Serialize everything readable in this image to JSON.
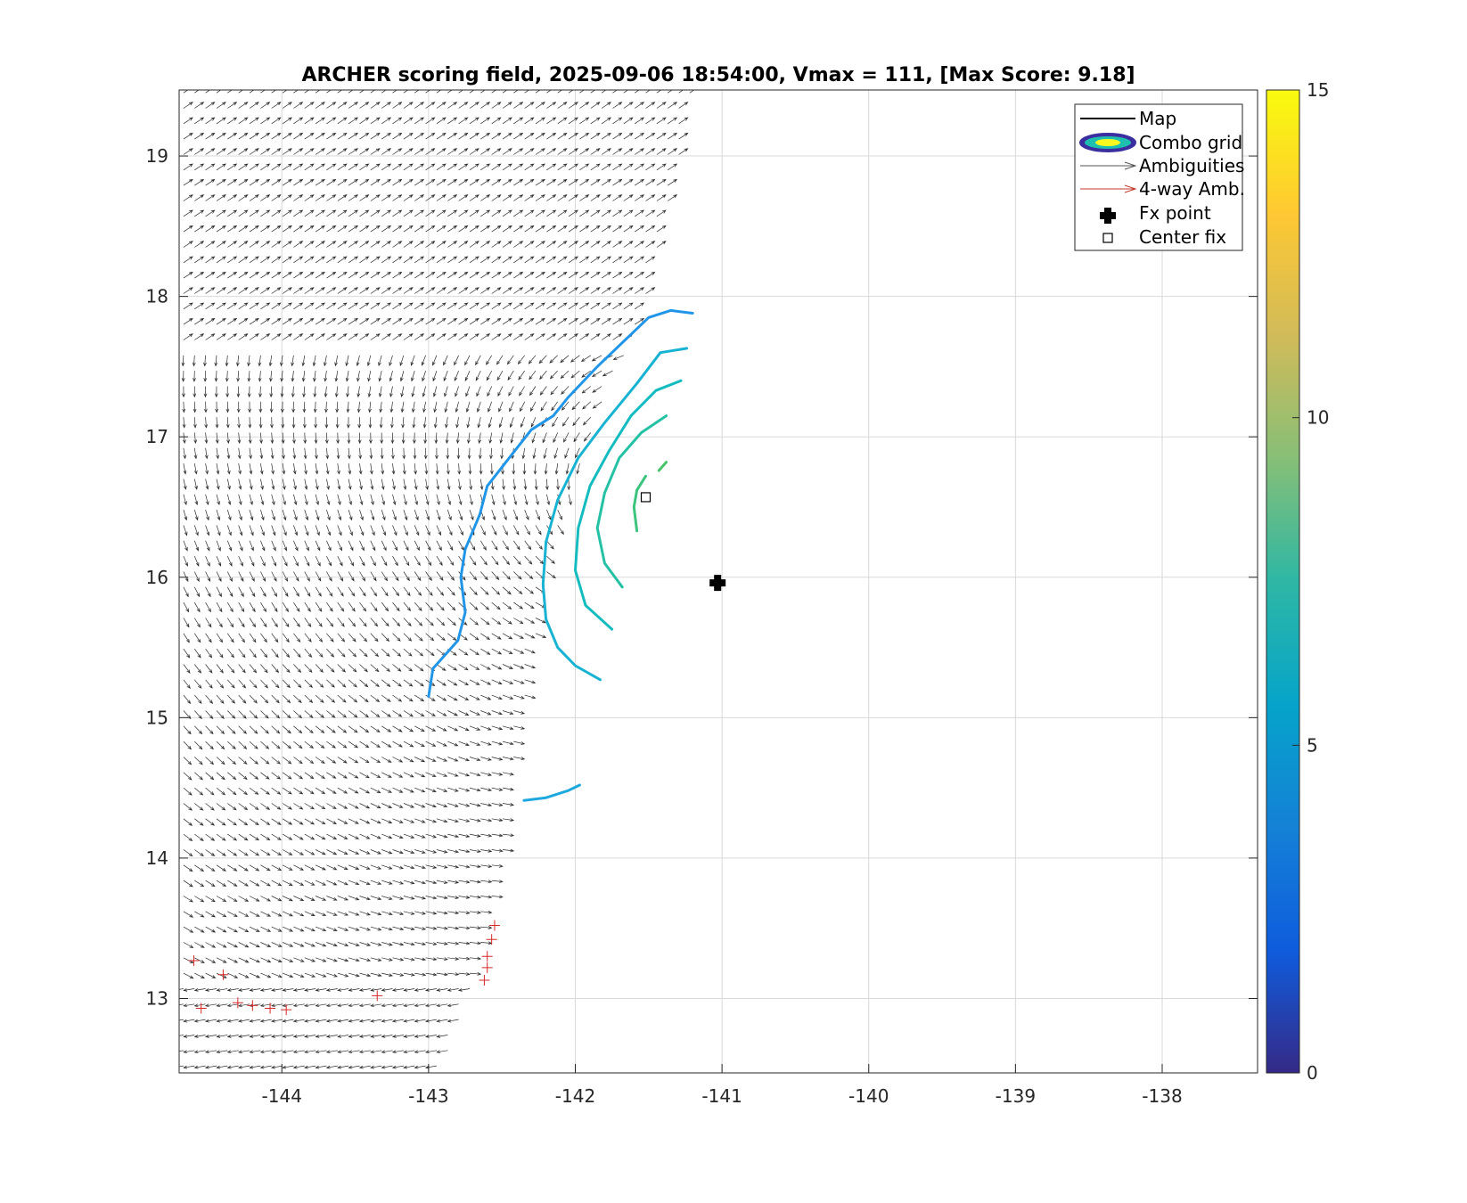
{
  "chart_data": {
    "type": "contour-vector-map",
    "title": "ARCHER scoring field, 2025-09-06 18:54:00, Vmax = 111, [Max Score: 9.18]",
    "xlabel": "",
    "ylabel": "",
    "xlim": [
      -144.7,
      -137.35
    ],
    "ylim": [
      12.47,
      19.47
    ],
    "x_ticks": [
      "-144",
      "-143",
      "-142",
      "-141",
      "-140",
      "-139",
      "-138"
    ],
    "y_ticks": [
      "13",
      "14",
      "15",
      "16",
      "17",
      "18",
      "19"
    ],
    "grid": true,
    "colorbar": {
      "range": [
        0,
        15
      ],
      "ticks": [
        "0",
        "5",
        "10",
        "15"
      ],
      "colormap": "parula"
    },
    "legend": {
      "placement": "top-right",
      "entries": [
        "Map",
        "Combo grid",
        "Ambiguities",
        "4-way Amb.",
        "Fx point",
        "Center fix"
      ]
    },
    "fx_point": {
      "x": -141.03,
      "y": 15.96
    },
    "center_fix": {
      "x": -141.52,
      "y": 16.57
    },
    "contours": [
      {
        "level": 5.2,
        "color": "#2196e8",
        "points": [
          [
            -143.0,
            15.15
          ],
          [
            -142.97,
            15.35
          ],
          [
            -142.8,
            15.55
          ],
          [
            -142.75,
            15.75
          ],
          [
            -142.78,
            16.0
          ],
          [
            -142.75,
            16.2
          ],
          [
            -142.65,
            16.45
          ],
          [
            -142.6,
            16.65
          ],
          [
            -142.45,
            16.85
          ],
          [
            -142.3,
            17.05
          ],
          [
            -142.15,
            17.15
          ],
          [
            -142.05,
            17.28
          ],
          [
            -141.85,
            17.5
          ],
          [
            -141.65,
            17.7
          ],
          [
            -141.5,
            17.85
          ],
          [
            -141.35,
            17.9
          ],
          [
            -141.2,
            17.88
          ]
        ]
      },
      {
        "level": 5.6,
        "color": "#1ea8dd",
        "points": [
          [
            -142.35,
            14.41
          ],
          [
            -142.2,
            14.43
          ],
          [
            -142.05,
            14.48
          ],
          [
            -141.97,
            14.52
          ]
        ]
      },
      {
        "level": 6.0,
        "color": "#18b2d2",
        "points": [
          [
            -141.83,
            15.27
          ],
          [
            -142.0,
            15.37
          ],
          [
            -142.12,
            15.5
          ],
          [
            -142.2,
            15.7
          ],
          [
            -142.22,
            15.95
          ],
          [
            -142.2,
            16.25
          ],
          [
            -142.12,
            16.55
          ],
          [
            -141.98,
            16.85
          ],
          [
            -141.8,
            17.1
          ],
          [
            -141.58,
            17.38
          ],
          [
            -141.42,
            17.6
          ],
          [
            -141.24,
            17.63
          ]
        ]
      },
      {
        "level": 7.0,
        "color": "#14bcc0",
        "points": [
          [
            -141.75,
            15.63
          ],
          [
            -141.93,
            15.8
          ],
          [
            -142.0,
            16.05
          ],
          [
            -141.98,
            16.35
          ],
          [
            -141.9,
            16.65
          ],
          [
            -141.77,
            16.9
          ],
          [
            -141.62,
            17.15
          ],
          [
            -141.45,
            17.33
          ],
          [
            -141.28,
            17.4
          ]
        ]
      },
      {
        "level": 8.0,
        "color": "#24c1a4",
        "points": [
          [
            -141.68,
            15.93
          ],
          [
            -141.8,
            16.1
          ],
          [
            -141.85,
            16.35
          ],
          [
            -141.8,
            16.6
          ],
          [
            -141.7,
            16.85
          ],
          [
            -141.55,
            17.03
          ],
          [
            -141.38,
            17.15
          ]
        ]
      },
      {
        "level": 9.0,
        "color": "#3cc47e",
        "points": [
          [
            -141.58,
            16.33
          ],
          [
            -141.6,
            16.5
          ],
          [
            -141.58,
            16.62
          ],
          [
            -141.52,
            16.72
          ]
        ]
      },
      {
        "level": 9.1,
        "color": "#48c46c",
        "points": [
          [
            -141.43,
            16.76
          ],
          [
            -141.38,
            16.82
          ]
        ]
      }
    ]
  }
}
